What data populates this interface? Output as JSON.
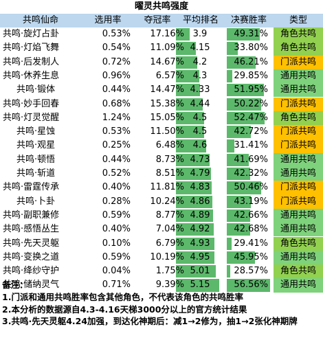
{
  "title": "曜灵共鸣强度",
  "headers": {
    "name": "共鸣仙命",
    "select_rate": "选用率",
    "win_rate": "夺冠率",
    "avg_rank": "平均排名",
    "final_win_rate": "决赛胜率",
    "type": "类型"
  },
  "type_colors": {
    "角色共鸣": "#92d050",
    "门派共鸣": "#ffc000",
    "通用共鸣": "#7ed27b"
  },
  "rank_scale": [
    3.3,
    5.35
  ],
  "final_scale": [
    26,
    57
  ],
  "rows": [
    {
      "name": "共鸣·旋灯占卦",
      "indent": 0,
      "select": "0.53%",
      "win": "17.16%",
      "rank": 3.9,
      "rank_text": "3.9",
      "final": 49.31,
      "final_text": "49.31%",
      "type": "角色共鸣"
    },
    {
      "name": "共鸣·灯焰飞舞",
      "indent": 0,
      "select": "0.54%",
      "win": "11.09%",
      "rank": 4.15,
      "rank_text": "4.15",
      "final": 33.8,
      "final_text": "33.80%",
      "type": "角色共鸣"
    },
    {
      "name": "共鸣·后发制人",
      "indent": 0,
      "select": "0.72%",
      "win": "14.67%",
      "rank": 4.2,
      "rank_text": "4.2",
      "final": 46.21,
      "final_text": "46.21%",
      "type": "门派共鸣"
    },
    {
      "name": "共鸣·休养生息",
      "indent": 0,
      "select": "0.96%",
      "win": "6.57%",
      "rank": 4.3,
      "rank_text": "4.3",
      "final": 29.85,
      "final_text": "29.85%",
      "type": "通用共鸣"
    },
    {
      "name": "共鸣·锻体",
      "indent": 1,
      "select": "0.44%",
      "win": "14.47%",
      "rank": 4.33,
      "rank_text": "4.33",
      "final": 51.95,
      "final_text": "51.95%",
      "type": "通用共鸣"
    },
    {
      "name": "共鸣·妙手回春",
      "indent": 0,
      "select": "0.68%",
      "win": "15.38%",
      "rank": 4.44,
      "rank_text": "4.44",
      "final": 50.22,
      "final_text": "50.22%",
      "type": "门派共鸣"
    },
    {
      "name": "共鸣·灯灵觉醒",
      "indent": 0,
      "select": "1.24%",
      "win": "15.05%",
      "rank": 4.5,
      "rank_text": "4.5",
      "final": 52.47,
      "final_text": "52.47%",
      "type": "角色共鸣"
    },
    {
      "name": "共鸣·星蚀",
      "indent": 1,
      "select": "0.53%",
      "win": "11.50%",
      "rank": 4.5,
      "rank_text": "4.5",
      "final": 42.72,
      "final_text": "42.72%",
      "type": "门派共鸣"
    },
    {
      "name": "共鸣·观星",
      "indent": 1,
      "select": "0.25%",
      "win": "6.48%",
      "rank": 4.6,
      "rank_text": "4.6",
      "final": 31.41,
      "final_text": "31.41%",
      "type": "门派共鸣"
    },
    {
      "name": "共鸣·顿悟",
      "indent": 1,
      "select": "0.44%",
      "win": "8.73%",
      "rank": 4.73,
      "rank_text": "4.73",
      "final": 41.69,
      "final_text": "41.69%",
      "type": "通用共鸣"
    },
    {
      "name": "共鸣·斩道",
      "indent": 1,
      "select": "0.52%",
      "win": "8.51%",
      "rank": 4.79,
      "rank_text": "4.79",
      "final": 42.32,
      "final_text": "42.32%",
      "type": "通用共鸣"
    },
    {
      "name": "共鸣·雷霆传承",
      "indent": 0,
      "select": "0.40%",
      "win": "11.81%",
      "rank": 4.83,
      "rank_text": "4.83",
      "final": 50.46,
      "final_text": "50.46%",
      "type": "门派共鸣"
    },
    {
      "name": "共鸣·卜卦",
      "indent": 1,
      "select": "0.28%",
      "win": "10.24%",
      "rank": 4.86,
      "rank_text": "4.86",
      "final": 43.19,
      "final_text": "43.19%",
      "type": "门派共鸣"
    },
    {
      "name": "共鸣·副职兼修",
      "indent": 0,
      "select": "0.59%",
      "win": "8.77%",
      "rank": 4.89,
      "rank_text": "4.89",
      "final": 42.66,
      "final_text": "42.66%",
      "type": "通用共鸣"
    },
    {
      "name": "共鸣·感悟丛生",
      "indent": 0,
      "select": "0.40%",
      "win": "7.04%",
      "rank": 4.92,
      "rank_text": "4.92",
      "final": 42.68,
      "final_text": "42.68%",
      "type": "通用共鸣"
    },
    {
      "name": "共鸣·先天灵躯",
      "indent": 0,
      "select": "0.10%",
      "win": "6.79%",
      "rank": 4.93,
      "rank_text": "4.93",
      "final": 29.41,
      "final_text": "29.41%",
      "type": "角色共鸣"
    },
    {
      "name": "共鸣·变换之道",
      "indent": 0,
      "select": "0.59%",
      "win": "10.19%",
      "rank": 4.95,
      "rank_text": "4.95",
      "final": 45.95,
      "final_text": "45.95%",
      "type": "通用共鸣"
    },
    {
      "name": "共鸣·绛纱守护",
      "indent": 0,
      "select": "0.04%",
      "win": "1.75%",
      "rank": 5.01,
      "rank_text": "5.01",
      "final": 28.57,
      "final_text": "28.57%",
      "type": "角色共鸣"
    },
    {
      "name": "共鸣·储纳灵气",
      "indent": 0,
      "select": "0.71%",
      "win": "9.39%",
      "rank": 5.15,
      "rank_text": "5.15",
      "final": 56.56,
      "final_text": "56.56%",
      "type": "通用共鸣"
    }
  ],
  "notes": {
    "heading": "备注：",
    "items": [
      "1.门派和通用共鸣胜率包含其他角色，不代表该角色的共鸣胜率",
      "2.本分析的数据源自4.3-4.16天梯3000分以上的官方统计结果",
      "3.共鸣·先天灵躯4.24加强，到达化神期后：减1→2修为，抽1→2张化神期牌"
    ]
  }
}
